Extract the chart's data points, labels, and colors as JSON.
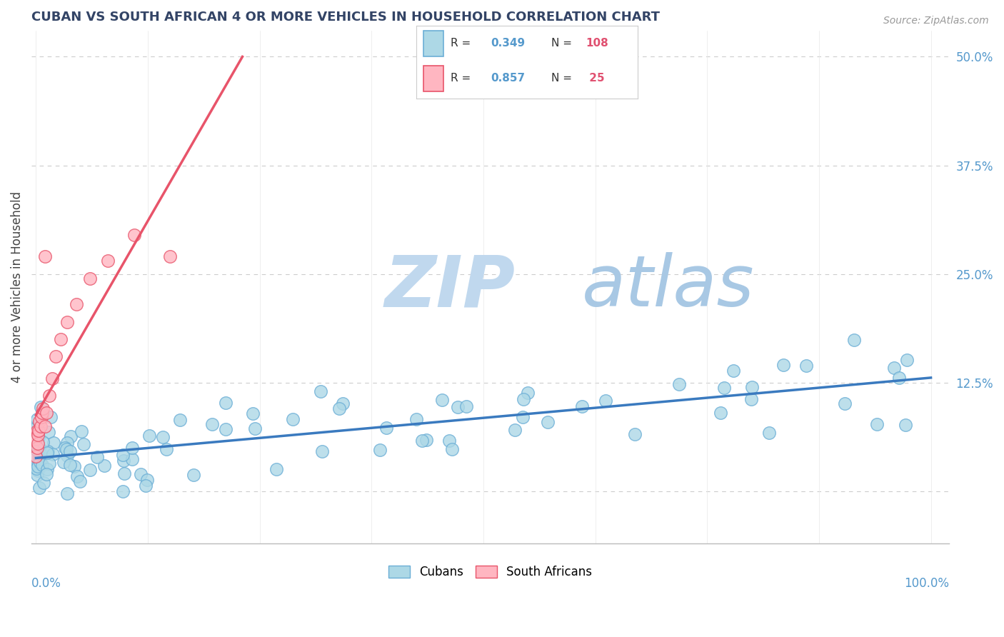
{
  "title": "CUBAN VS SOUTH AFRICAN 4 OR MORE VEHICLES IN HOUSEHOLD CORRELATION CHART",
  "source": "Source: ZipAtlas.com",
  "ylabel": "4 or more Vehicles in Household",
  "color_cubans": "#add8e6",
  "color_cubans_edge": "#6baed6",
  "color_sa": "#ffb6c1",
  "color_sa_edge": "#e8546a",
  "color_line_cubans": "#3a7abf",
  "color_line_sa": "#e8546a",
  "color_watermark_zip": "#c8dff0",
  "color_watermark_atlas": "#b0c8e0",
  "background_color": "#ffffff",
  "grid_color": "#cccccc",
  "ytick_color": "#5599cc",
  "title_color": "#334466",
  "source_color": "#999999",
  "legend_border_color": "#cccccc"
}
